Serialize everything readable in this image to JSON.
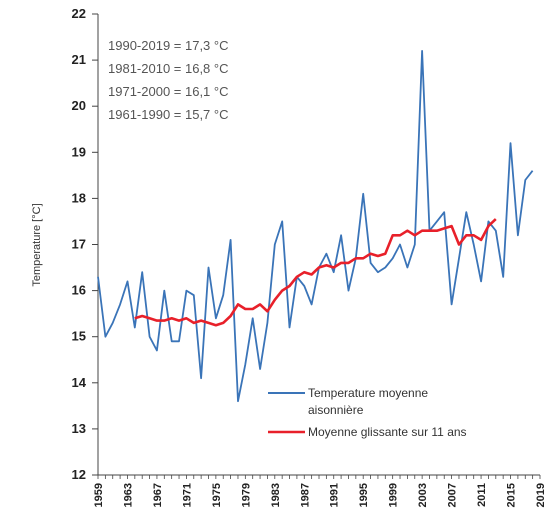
{
  "chart_data": {
    "type": "line",
    "title": "",
    "xlabel": "",
    "ylabel": "Temperature [°C]",
    "ylim": [
      12,
      22
    ],
    "xlim": [
      1959,
      2019
    ],
    "grid": false,
    "legend_position": "bottom-right",
    "y_ticks": [
      "12",
      "13",
      "14",
      "15",
      "16",
      "17",
      "18",
      "19",
      "20",
      "21",
      "22"
    ],
    "x_ticks": [
      "1959",
      "1963",
      "1967",
      "1971",
      "1975",
      "1979",
      "1983",
      "1987",
      "1991",
      "1995",
      "1999",
      "2003",
      "2007",
      "2011",
      "2015",
      "2019"
    ],
    "annotations": [
      "1990-2019 = 17,3 °C",
      "1981-2010 = 16,8 °C",
      "1971-2000 = 16,1 °C",
      "1961-1990 = 15,7 °C"
    ],
    "colors": {
      "series_temp": "#3a74b8",
      "series_moving": "#e8202a",
      "annotation": "#555555"
    },
    "series": [
      {
        "name": "Temperature moyenne aisonnière",
        "legend_line1": "Temperature moyenne",
        "legend_line2": "aisonnière",
        "x": [
          1959,
          1960,
          1961,
          1962,
          1963,
          1964,
          1965,
          1966,
          1967,
          1968,
          1969,
          1970,
          1971,
          1972,
          1973,
          1974,
          1975,
          1976,
          1977,
          1978,
          1979,
          1980,
          1981,
          1982,
          1983,
          1984,
          1985,
          1986,
          1987,
          1988,
          1989,
          1990,
          1991,
          1992,
          1993,
          1994,
          1995,
          1996,
          1997,
          1998,
          1999,
          2000,
          2001,
          2002,
          2003,
          2004,
          2005,
          2006,
          2007,
          2008,
          2009,
          2010,
          2011,
          2012,
          2013,
          2014,
          2015,
          2016,
          2017,
          2018
        ],
        "y": [
          16.3,
          15.0,
          15.3,
          15.7,
          16.2,
          15.2,
          16.4,
          15.0,
          14.7,
          16.0,
          14.9,
          14.9,
          16.0,
          15.9,
          14.1,
          16.5,
          15.4,
          15.9,
          17.1,
          13.6,
          14.4,
          15.4,
          14.3,
          15.3,
          17.0,
          17.5,
          15.2,
          16.3,
          16.1,
          15.7,
          16.5,
          16.8,
          16.4,
          17.2,
          16.0,
          16.7,
          18.1,
          16.6,
          16.4,
          16.5,
          16.7,
          17.0,
          16.5,
          17.0,
          21.2,
          17.3,
          17.5,
          17.7,
          15.7,
          16.7,
          17.7,
          17.0,
          16.2,
          17.5,
          17.3,
          16.3,
          19.2,
          17.2,
          18.4,
          18.6
        ]
      },
      {
        "name": "Moyenne glissante sur 11 ans",
        "x": [
          1964,
          1965,
          1966,
          1967,
          1968,
          1969,
          1970,
          1971,
          1972,
          1973,
          1974,
          1975,
          1976,
          1977,
          1978,
          1979,
          1980,
          1981,
          1982,
          1983,
          1984,
          1985,
          1986,
          1987,
          1988,
          1989,
          1990,
          1991,
          1992,
          1993,
          1994,
          1995,
          1996,
          1997,
          1998,
          1999,
          2000,
          2001,
          2002,
          2003,
          2004,
          2005,
          2006,
          2007,
          2008,
          2009,
          2010,
          2011,
          2012,
          2013
        ],
        "y": [
          15.4,
          15.45,
          15.4,
          15.35,
          15.35,
          15.4,
          15.35,
          15.4,
          15.3,
          15.35,
          15.3,
          15.25,
          15.3,
          15.45,
          15.7,
          15.6,
          15.6,
          15.7,
          15.55,
          15.8,
          16.0,
          16.1,
          16.3,
          16.4,
          16.35,
          16.5,
          16.55,
          16.5,
          16.6,
          16.6,
          16.7,
          16.7,
          16.8,
          16.75,
          16.8,
          17.2,
          17.2,
          17.3,
          17.2,
          17.3,
          17.3,
          17.3,
          17.35,
          17.4,
          17.0,
          17.2,
          17.2,
          17.1,
          17.4,
          17.55
        ]
      }
    ]
  }
}
